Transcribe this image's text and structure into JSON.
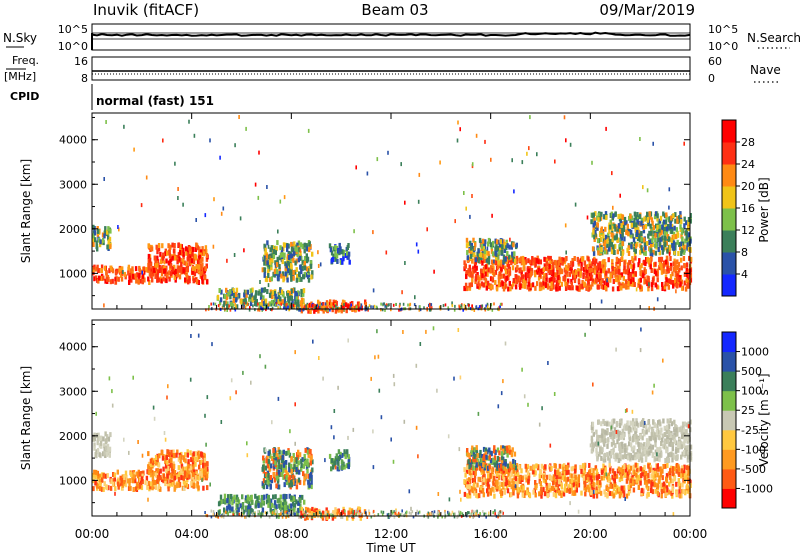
{
  "header": {
    "station": "Inuvik (fitACF)",
    "beam": "Beam 03",
    "date": "09/Mar/2019"
  },
  "noise_panel": {
    "left_label": "N.Sky",
    "right_label": "N.Search",
    "left_ticks": [
      "10^5",
      "10^0"
    ],
    "right_ticks": [
      "10^5",
      "10^0"
    ]
  },
  "freq_panel": {
    "left_label": "Freq.",
    "left_unit": "[MHz]",
    "right_label": "Nave",
    "left_ticks": [
      "16",
      "8"
    ],
    "right_ticks": [
      "60",
      "0"
    ]
  },
  "cpid_panel": {
    "label": "CPID",
    "text": "normal (fast) 151"
  },
  "chart_data": [
    {
      "type": "heatmap",
      "panel": "power",
      "ylabel": "Slant Range [km]",
      "yticks": [
        1000,
        2000,
        3000,
        4000
      ],
      "ylim": [
        200,
        4600
      ],
      "colorbar_label": "Power [dB]",
      "colorbar_ticks": [
        "4",
        "8",
        "12",
        "16",
        "20",
        "24",
        "28"
      ],
      "colorbar_colors": [
        "#1428ff",
        "#2a52a8",
        "#3b7f5a",
        "#7dc04a",
        "#f0c418",
        "#ff8a14",
        "#ff3014",
        "#ff0000"
      ],
      "regions": [
        {
          "t0": 0.0,
          "t1": 4.6,
          "r0": 850,
          "r1": 1200,
          "level": "high"
        },
        {
          "t0": 2.2,
          "t1": 4.6,
          "r0": 1100,
          "r1": 1700,
          "level": "high"
        },
        {
          "t0": 0.0,
          "t1": 0.7,
          "r0": 1600,
          "r1": 2100,
          "level": "mid"
        },
        {
          "t0": 5.0,
          "t1": 8.5,
          "r0": 300,
          "r1": 700,
          "level": "mid"
        },
        {
          "t0": 6.8,
          "t1": 8.8,
          "r0": 900,
          "r1": 1750,
          "level": "mid"
        },
        {
          "t0": 9.5,
          "t1": 10.3,
          "r0": 1300,
          "r1": 1700,
          "level": "low"
        },
        {
          "t0": 8.3,
          "t1": 11.0,
          "r0": 200,
          "r1": 420,
          "level": "high"
        },
        {
          "t0": 14.9,
          "t1": 24.0,
          "r0": 700,
          "r1": 1400,
          "level": "high"
        },
        {
          "t0": 15.0,
          "t1": 17.0,
          "r0": 1300,
          "r1": 1800,
          "level": "mid"
        },
        {
          "t0": 20.0,
          "t1": 24.0,
          "r0": 1500,
          "r1": 2400,
          "level": "mid"
        }
      ]
    },
    {
      "type": "heatmap",
      "panel": "velocity",
      "ylabel": "Slant Range [km]",
      "yticks": [
        1000,
        2000,
        3000,
        4000
      ],
      "ylim": [
        200,
        4600
      ],
      "xlabel": "Time UT",
      "xticks": [
        "00:00",
        "04:00",
        "08:00",
        "12:00",
        "16:00",
        "20:00",
        "00:00"
      ],
      "xlim": [
        0,
        24
      ],
      "colorbar_label": "Velocity [m s⁻¹]",
      "colorbar_ticks": [
        "-1000",
        "-500",
        "-100",
        "-25",
        "25",
        "100",
        "500",
        "1000"
      ],
      "colorbar_colors": [
        "#ff0000",
        "#ff5a14",
        "#ff9a20",
        "#ffc840",
        "#c8c8b4",
        "#7dc04a",
        "#3b7f5a",
        "#2a52a8",
        "#1428ff"
      ],
      "regions": [
        {
          "t0": 0.0,
          "t1": 4.6,
          "r0": 850,
          "r1": 1250,
          "level": "neg"
        },
        {
          "t0": 2.2,
          "t1": 4.6,
          "r0": 1100,
          "r1": 1700,
          "level": "neg"
        },
        {
          "t0": 0.0,
          "t1": 0.7,
          "r0": 1600,
          "r1": 2100,
          "level": "gray"
        },
        {
          "t0": 5.0,
          "t1": 8.5,
          "r0": 300,
          "r1": 700,
          "level": "pos"
        },
        {
          "t0": 6.8,
          "t1": 8.8,
          "r0": 900,
          "r1": 1750,
          "level": "mix"
        },
        {
          "t0": 9.5,
          "t1": 10.3,
          "r0": 1300,
          "r1": 1700,
          "level": "pos"
        },
        {
          "t0": 8.3,
          "t1": 11.0,
          "r0": 200,
          "r1": 420,
          "level": "neg"
        },
        {
          "t0": 14.9,
          "t1": 24.0,
          "r0": 700,
          "r1": 1400,
          "level": "neg"
        },
        {
          "t0": 15.0,
          "t1": 17.0,
          "r0": 1300,
          "r1": 1800,
          "level": "mix"
        },
        {
          "t0": 20.0,
          "t1": 24.0,
          "r0": 1500,
          "r1": 2400,
          "level": "gray"
        }
      ]
    }
  ]
}
